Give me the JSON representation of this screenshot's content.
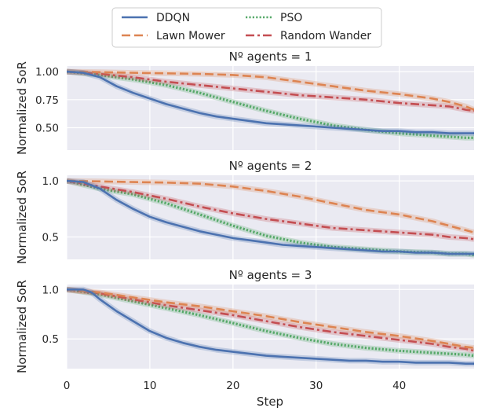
{
  "legend": {
    "location": "top-center",
    "entries": [
      {
        "label": "DDQN",
        "color": "#4c72b0",
        "style": "solid"
      },
      {
        "label": "Lawn Mower",
        "color": "#dd8452",
        "style": "dashed"
      },
      {
        "label": "PSO",
        "color": "#55a868",
        "style": "dotted"
      },
      {
        "label": "Random Wander",
        "color": "#c44e52",
        "style": "dashdot"
      }
    ]
  },
  "chart_data": [
    {
      "type": "line",
      "title": "Nº agents = 1",
      "ylabel": "Normalized SoR",
      "xlabel": "",
      "xlim": [
        0,
        49
      ],
      "ylim": [
        0.3,
        1.05
      ],
      "yticks": [
        {
          "value": 0.5,
          "label": "0.50"
        },
        {
          "value": 0.75,
          "label": "0.75"
        },
        {
          "value": 1.0,
          "label": "1.00"
        }
      ],
      "xticks": [
        0,
        10,
        20,
        30,
        40
      ],
      "series": [
        {
          "name": "DDQN",
          "x": [
            0,
            2,
            4,
            6,
            8,
            10,
            12,
            14,
            16,
            18,
            20,
            22,
            24,
            26,
            28,
            30,
            32,
            34,
            36,
            38,
            40,
            42,
            44,
            46,
            48,
            49
          ],
          "values": [
            1.0,
            0.99,
            0.95,
            0.87,
            0.81,
            0.76,
            0.71,
            0.67,
            0.63,
            0.6,
            0.58,
            0.56,
            0.54,
            0.53,
            0.52,
            0.51,
            0.5,
            0.49,
            0.48,
            0.47,
            0.47,
            0.46,
            0.46,
            0.45,
            0.45,
            0.45
          ]
        },
        {
          "name": "Lawn Mower",
          "x": [
            0,
            4,
            8,
            12,
            16,
            20,
            24,
            28,
            32,
            36,
            40,
            44,
            46,
            48,
            49
          ],
          "values": [
            1.0,
            0.995,
            0.99,
            0.985,
            0.98,
            0.97,
            0.95,
            0.91,
            0.87,
            0.83,
            0.8,
            0.76,
            0.73,
            0.69,
            0.66
          ]
        },
        {
          "name": "PSO",
          "x": [
            0,
            4,
            8,
            12,
            16,
            20,
            24,
            28,
            32,
            36,
            40,
            44,
            46,
            48,
            49
          ],
          "values": [
            1.0,
            0.97,
            0.93,
            0.88,
            0.81,
            0.73,
            0.65,
            0.58,
            0.52,
            0.48,
            0.45,
            0.43,
            0.42,
            0.41,
            0.41
          ]
        },
        {
          "name": "Random Wander",
          "x": [
            0,
            4,
            8,
            12,
            16,
            20,
            24,
            28,
            32,
            36,
            40,
            44,
            46,
            48,
            49
          ],
          "values": [
            1.0,
            0.98,
            0.95,
            0.91,
            0.88,
            0.85,
            0.82,
            0.79,
            0.77,
            0.75,
            0.72,
            0.7,
            0.69,
            0.66,
            0.65
          ]
        }
      ]
    },
    {
      "type": "line",
      "title": "Nº agents = 2",
      "ylabel": "Normalized SoR",
      "xlabel": "",
      "xlim": [
        0,
        49
      ],
      "ylim": [
        0.3,
        1.05
      ],
      "yticks": [
        {
          "value": 0.5,
          "label": "0.5"
        },
        {
          "value": 1.0,
          "label": "1.0"
        }
      ],
      "xticks": [
        0,
        10,
        20,
        30,
        40
      ],
      "series": [
        {
          "name": "DDQN",
          "x": [
            0,
            2,
            4,
            6,
            8,
            10,
            12,
            14,
            16,
            18,
            20,
            22,
            24,
            26,
            28,
            30,
            32,
            34,
            36,
            38,
            40,
            42,
            44,
            46,
            48,
            49
          ],
          "values": [
            1.0,
            0.99,
            0.93,
            0.83,
            0.75,
            0.68,
            0.63,
            0.59,
            0.55,
            0.52,
            0.49,
            0.47,
            0.45,
            0.43,
            0.42,
            0.41,
            0.4,
            0.39,
            0.38,
            0.37,
            0.37,
            0.36,
            0.36,
            0.35,
            0.35,
            0.35
          ]
        },
        {
          "name": "Lawn Mower",
          "x": [
            0,
            4,
            8,
            12,
            16,
            20,
            24,
            28,
            32,
            36,
            40,
            44,
            46,
            48,
            49
          ],
          "values": [
            1.0,
            0.995,
            0.99,
            0.985,
            0.975,
            0.95,
            0.91,
            0.86,
            0.8,
            0.74,
            0.7,
            0.64,
            0.6,
            0.56,
            0.54
          ]
        },
        {
          "name": "PSO",
          "x": [
            0,
            4,
            8,
            12,
            16,
            20,
            24,
            28,
            32,
            36,
            40,
            44,
            46,
            48,
            49
          ],
          "values": [
            1.0,
            0.93,
            0.88,
            0.8,
            0.7,
            0.6,
            0.51,
            0.45,
            0.41,
            0.39,
            0.37,
            0.36,
            0.35,
            0.35,
            0.34
          ]
        },
        {
          "name": "Random Wander",
          "x": [
            0,
            4,
            8,
            12,
            16,
            20,
            24,
            28,
            32,
            36,
            40,
            44,
            46,
            48,
            49
          ],
          "values": [
            1.0,
            0.95,
            0.9,
            0.84,
            0.77,
            0.71,
            0.66,
            0.62,
            0.58,
            0.56,
            0.54,
            0.52,
            0.5,
            0.49,
            0.48
          ]
        }
      ]
    },
    {
      "type": "line",
      "title": "Nº agents = 3",
      "ylabel": "Normalized SoR",
      "xlabel": "Step",
      "xlim": [
        0,
        49
      ],
      "ylim": [
        0.2,
        1.05
      ],
      "yticks": [
        {
          "value": 0.5,
          "label": "0.5"
        },
        {
          "value": 1.0,
          "label": "1.0"
        }
      ],
      "xticks": [
        0,
        10,
        20,
        30,
        40
      ],
      "series": [
        {
          "name": "DDQN",
          "x": [
            0,
            2,
            3,
            4,
            6,
            8,
            10,
            12,
            14,
            16,
            18,
            20,
            22,
            24,
            26,
            28,
            30,
            32,
            34,
            36,
            38,
            40,
            42,
            44,
            46,
            48,
            49
          ],
          "values": [
            1.0,
            1.0,
            0.97,
            0.9,
            0.78,
            0.68,
            0.58,
            0.51,
            0.46,
            0.42,
            0.39,
            0.37,
            0.35,
            0.33,
            0.32,
            0.31,
            0.3,
            0.29,
            0.28,
            0.28,
            0.27,
            0.27,
            0.26,
            0.26,
            0.26,
            0.25,
            0.25
          ]
        },
        {
          "name": "Lawn Mower",
          "x": [
            0,
            4,
            8,
            12,
            16,
            20,
            24,
            28,
            32,
            36,
            40,
            44,
            46,
            48,
            49
          ],
          "values": [
            1.0,
            0.97,
            0.92,
            0.87,
            0.83,
            0.78,
            0.73,
            0.67,
            0.62,
            0.57,
            0.53,
            0.48,
            0.45,
            0.42,
            0.41
          ]
        },
        {
          "name": "PSO",
          "x": [
            0,
            4,
            8,
            12,
            16,
            20,
            24,
            28,
            32,
            36,
            40,
            44,
            46,
            48,
            49
          ],
          "values": [
            1.0,
            0.95,
            0.88,
            0.81,
            0.74,
            0.66,
            0.58,
            0.51,
            0.45,
            0.41,
            0.38,
            0.36,
            0.35,
            0.34,
            0.33
          ]
        },
        {
          "name": "Random Wander",
          "x": [
            0,
            4,
            8,
            12,
            16,
            20,
            24,
            28,
            32,
            36,
            40,
            44,
            46,
            48,
            49
          ],
          "values": [
            1.0,
            0.96,
            0.9,
            0.84,
            0.79,
            0.74,
            0.68,
            0.62,
            0.57,
            0.53,
            0.49,
            0.45,
            0.42,
            0.4,
            0.38
          ]
        }
      ]
    }
  ]
}
